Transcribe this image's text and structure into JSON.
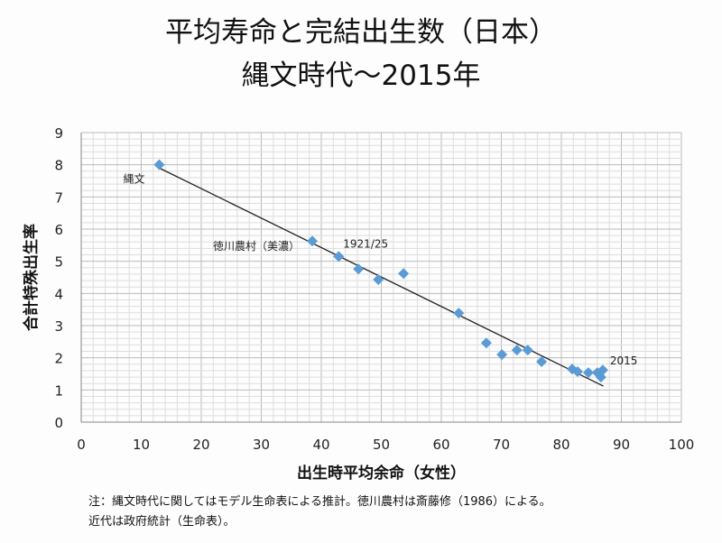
{
  "chart_data": {
    "type": "scatter",
    "title": "平均寿命と完結出生数（日本）",
    "subtitle": "縄文時代～2015年",
    "xlabel": "出生時平均余命（女性）",
    "ylabel": "合計特殊出生率",
    "xlim": [
      0,
      100
    ],
    "ylim": [
      0,
      9
    ],
    "xticks": [
      0,
      10,
      20,
      30,
      40,
      50,
      60,
      70,
      80,
      90,
      100
    ],
    "yticks": [
      0,
      1,
      2,
      3,
      4,
      5,
      6,
      7,
      8,
      9
    ],
    "grid": true,
    "points": [
      [
        13,
        8.0
      ],
      [
        38.5,
        5.63
      ],
      [
        42.9,
        5.15
      ],
      [
        46.2,
        4.76
      ],
      [
        49.5,
        4.43
      ],
      [
        53.7,
        4.62
      ],
      [
        62.9,
        3.39
      ],
      [
        67.5,
        2.46
      ],
      [
        70.1,
        2.1
      ],
      [
        72.6,
        2.24
      ],
      [
        74.4,
        2.24
      ],
      [
        76.7,
        1.88
      ],
      [
        81.8,
        1.65
      ],
      [
        82.7,
        1.57
      ],
      [
        84.5,
        1.54
      ],
      [
        86,
        1.54
      ],
      [
        86.6,
        1.4
      ],
      [
        86.9,
        1.62
      ]
    ],
    "trendline": [
      [
        13,
        7.9
      ],
      [
        87,
        1.12
      ]
    ],
    "annotations": [
      {
        "text": "縄文",
        "x": 13,
        "y": 8.0
      },
      {
        "text": "徳川農村（美濃）",
        "x": 38.5,
        "y": 5.63
      },
      {
        "text": "1921/25",
        "x": 42.9,
        "y": 5.15
      },
      {
        "text": "2015",
        "x": 86.9,
        "y": 1.62
      }
    ],
    "color": "#5b9bd5"
  },
  "notes": [
    "注：縄文時代に関してはモデル生命表による推計。徳川農村は斎藤修（1986）による。",
    "近代は政府統計（生命表）。"
  ]
}
